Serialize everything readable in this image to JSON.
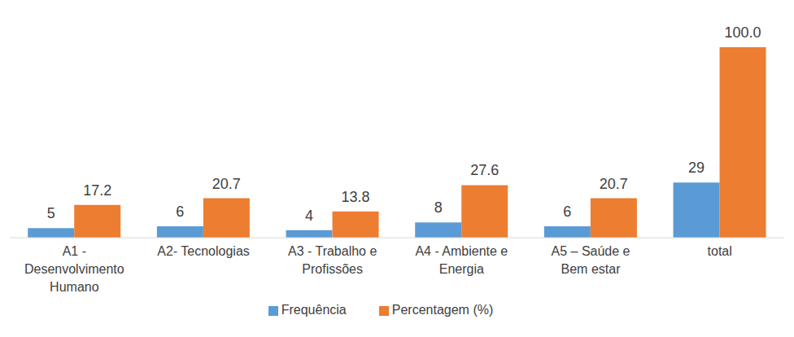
{
  "chart_data": {
    "type": "bar",
    "categories": [
      "A1 - Desenvolvimento Humano",
      "A2- Tecnologias",
      "A3 - Trabalho e Profissões",
      "A4 - Ambiente e Energia",
      "A5 – Saúde e Bem estar",
      "total"
    ],
    "series": [
      {
        "name": "Frequência",
        "color": "#5b9bd5",
        "values": [
          5,
          6,
          4,
          8,
          6,
          29
        ]
      },
      {
        "name": "Percentagem (%)",
        "color": "#ed7d31",
        "values": [
          17.2,
          20.7,
          13.8,
          27.6,
          20.7,
          100.0
        ],
        "value_labels": [
          "17.2",
          "20.7",
          "13.8",
          "27.6",
          "20.7",
          "100.0"
        ]
      }
    ],
    "ylim": [
      0,
      100
    ],
    "data_labels": true,
    "legend": "bottom",
    "tick_labels": "x",
    "grid": false
  }
}
